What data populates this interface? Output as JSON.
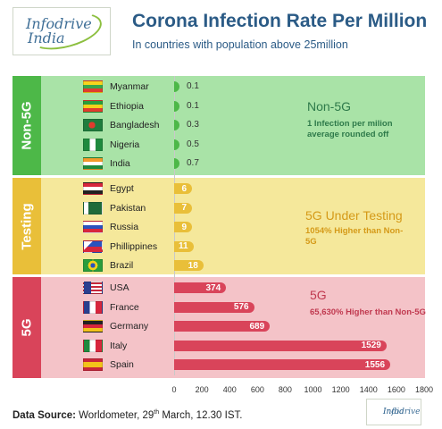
{
  "logo": {
    "line1": "Infodrive",
    "line2": "India"
  },
  "title": "Corona Infection Rate Per Million",
  "subtitle": "In countries with population above 25million",
  "bands": {
    "non5g": {
      "label": "Non-5G",
      "ann_title": "Non-5G",
      "ann_sub": "1 Infection per milion average rounded off",
      "color": "#a9e3a7"
    },
    "testing": {
      "label": "Testing",
      "ann_title": "5G Under Testing",
      "ann_sub": "1054% Higher than Non-5G",
      "color": "#f5e89b"
    },
    "g5": {
      "label": "5G",
      "ann_title": "5G",
      "ann_sub": "65,630% Higher than Non-5G",
      "color": "#f4c3c8"
    }
  },
  "chart_data": {
    "type": "bar",
    "orientation": "horizontal",
    "title": "Corona Infection Rate Per Million",
    "subtitle": "In countries with population above 25million",
    "xlim": [
      0,
      1800
    ],
    "x_ticks": [
      "0",
      "200",
      "400",
      "600",
      "800",
      "1000",
      "1200",
      "1400",
      "1600",
      "1800"
    ],
    "groups": [
      {
        "name": "Non-5G",
        "countries": [
          "Myanmar",
          "Ethiopia",
          "Bangladesh",
          "Nigeria",
          "India"
        ],
        "values": [
          "0.1",
          "0.1",
          "0.3",
          "0.5",
          "0.7"
        ],
        "numeric": [
          0.1,
          0.1,
          0.3,
          0.5,
          0.7
        ],
        "color": "#4db848"
      },
      {
        "name": "Testing",
        "countries": [
          "Egypt",
          "Pakistan",
          "Russia",
          "Phillippines",
          "Brazil"
        ],
        "values": [
          "6",
          "7",
          "9",
          "11",
          "18"
        ],
        "numeric": [
          6,
          7,
          9,
          11,
          18
        ],
        "color": "#e9bf39"
      },
      {
        "name": "5G",
        "countries": [
          "USA",
          "France",
          "Germany",
          "Italy",
          "Spain"
        ],
        "values": [
          "374",
          "576",
          "689",
          "1529",
          "1556"
        ],
        "numeric": [
          374,
          576,
          689,
          1529,
          1556
        ],
        "color": "#d9445a"
      }
    ]
  },
  "footer": {
    "label": "Data Source:",
    "text_before": " Worldometer, 29",
    "sup": "th",
    "text_after": " March, 12.30 IST."
  }
}
